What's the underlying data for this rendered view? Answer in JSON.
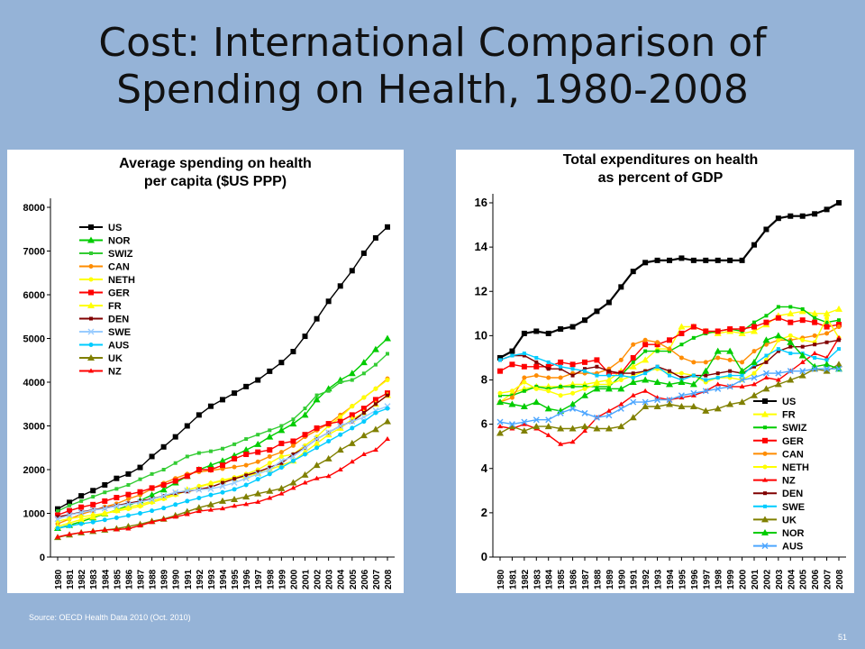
{
  "slide": {
    "title_line1": "Cost: International Comparison of",
    "title_line2": "Spending on Health, 1980-2008",
    "source": "Source: OECD Health Data 2010 (Oct. 2010)",
    "page_number": "51"
  },
  "chart_data": [
    {
      "type": "line",
      "title_line1": "Average spending on health",
      "title_line2": "per capita ($US PPP)",
      "xlabel": "",
      "ylabel": "",
      "ylim": [
        0,
        8000
      ],
      "yticks": [
        0,
        1000,
        2000,
        3000,
        4000,
        5000,
        6000,
        7000,
        8000
      ],
      "x": [
        "1980",
        "1981",
        "1982",
        "1983",
        "1984",
        "1985",
        "1986",
        "1987",
        "1988",
        "1989",
        "1990",
        "1991",
        "1992",
        "1993",
        "1994",
        "1995",
        "1996",
        "1997",
        "1998",
        "1999",
        "2000",
        "2001",
        "2002",
        "2003",
        "2004",
        "2005",
        "2006",
        "2007",
        "2008"
      ],
      "grid": false,
      "legend": "top-left",
      "series": [
        {
          "name": "US",
          "color": "#000000",
          "marker": "square",
          "values": [
            1100,
            1250,
            1400,
            1520,
            1650,
            1800,
            1900,
            2050,
            2300,
            2520,
            2750,
            3000,
            3250,
            3450,
            3600,
            3750,
            3900,
            4050,
            4250,
            4450,
            4700,
            5050,
            5450,
            5850,
            6200,
            6550,
            6950,
            7300,
            7550
          ]
        },
        {
          "name": "NOR",
          "color": "#00cc00",
          "marker": "triangle",
          "values": [
            660,
            730,
            810,
            900,
            990,
            1080,
            1180,
            1290,
            1420,
            1540,
            1700,
            1850,
            2000,
            2100,
            2200,
            2320,
            2450,
            2580,
            2750,
            2900,
            3050,
            3250,
            3600,
            3850,
            4050,
            4200,
            4450,
            4750,
            5000
          ]
        },
        {
          "name": "SWIZ",
          "color": "#33cc33",
          "marker": "square-sm",
          "values": [
            1050,
            1180,
            1280,
            1380,
            1480,
            1560,
            1650,
            1780,
            1900,
            2000,
            2150,
            2300,
            2380,
            2420,
            2480,
            2580,
            2700,
            2800,
            2900,
            3000,
            3150,
            3400,
            3700,
            3800,
            4000,
            4050,
            4200,
            4400,
            4650
          ]
        },
        {
          "name": "CAN",
          "color": "#ff8c00",
          "marker": "circle",
          "values": [
            760,
            870,
            980,
            1060,
            1150,
            1220,
            1330,
            1420,
            1560,
            1690,
            1800,
            1900,
            1950,
            1980,
            2020,
            2060,
            2100,
            2180,
            2300,
            2400,
            2550,
            2750,
            2900,
            3050,
            3250,
            3450,
            3650,
            3850,
            4080
          ]
        },
        {
          "name": "NETH",
          "color": "#ffff00",
          "marker": "circle",
          "values": [
            820,
            880,
            920,
            960,
            1000,
            1050,
            1100,
            1160,
            1250,
            1330,
            1420,
            1520,
            1620,
            1690,
            1760,
            1820,
            1900,
            2000,
            2150,
            2300,
            2350,
            2550,
            2750,
            3000,
            3200,
            3450,
            3650,
            3850,
            4050
          ]
        },
        {
          "name": "GER",
          "color": "#ff0000",
          "marker": "square",
          "values": [
            960,
            1060,
            1140,
            1200,
            1280,
            1360,
            1430,
            1490,
            1580,
            1650,
            1740,
            1850,
            2000,
            2000,
            2100,
            2250,
            2350,
            2400,
            2450,
            2600,
            2650,
            2800,
            2950,
            3050,
            3100,
            3250,
            3400,
            3600,
            3750
          ]
        },
        {
          "name": "FR",
          "color": "#ffff00",
          "marker": "triangle",
          "values": [
            700,
            780,
            860,
            920,
            1000,
            1070,
            1140,
            1200,
            1280,
            1360,
            1450,
            1540,
            1600,
            1680,
            1740,
            1800,
            1850,
            1920,
            2000,
            2100,
            2200,
            2400,
            2600,
            2800,
            2950,
            3150,
            3300,
            3500,
            3700
          ]
        },
        {
          "name": "DEN",
          "color": "#800000",
          "marker": "square-sm",
          "values": [
            920,
            970,
            1030,
            1080,
            1120,
            1180,
            1230,
            1280,
            1330,
            1400,
            1460,
            1500,
            1550,
            1600,
            1700,
            1790,
            1870,
            1950,
            2050,
            2150,
            2350,
            2500,
            2700,
            2850,
            3000,
            3100,
            3300,
            3500,
            3700
          ]
        },
        {
          "name": "SWE",
          "color": "#99ccff",
          "marker": "x",
          "values": [
            870,
            960,
            1020,
            1070,
            1110,
            1170,
            1210,
            1260,
            1320,
            1400,
            1480,
            1520,
            1540,
            1560,
            1620,
            1700,
            1800,
            1900,
            2000,
            2200,
            2300,
            2500,
            2700,
            2850,
            3000,
            3100,
            3200,
            3350,
            3450
          ]
        },
        {
          "name": "AUS",
          "color": "#00ccff",
          "marker": "circle",
          "values": [
            660,
            710,
            760,
            800,
            850,
            900,
            950,
            1000,
            1060,
            1120,
            1200,
            1280,
            1350,
            1420,
            1480,
            1550,
            1650,
            1780,
            1900,
            2050,
            2200,
            2350,
            2500,
            2650,
            2800,
            2950,
            3100,
            3300,
            3400
          ]
        },
        {
          "name": "UK",
          "color": "#808000",
          "marker": "triangle",
          "values": [
            450,
            510,
            560,
            590,
            620,
            650,
            700,
            750,
            820,
            870,
            950,
            1040,
            1130,
            1200,
            1280,
            1320,
            1380,
            1450,
            1510,
            1570,
            1700,
            1880,
            2100,
            2250,
            2450,
            2600,
            2780,
            2920,
            3100
          ]
        },
        {
          "name": "NZ",
          "color": "#ff0000",
          "marker": "triangle-sm",
          "values": [
            460,
            520,
            560,
            590,
            620,
            630,
            650,
            720,
            800,
            860,
            920,
            980,
            1050,
            1080,
            1110,
            1170,
            1210,
            1260,
            1350,
            1450,
            1580,
            1700,
            1800,
            1850,
            2000,
            2180,
            2350,
            2450,
            2700
          ]
        }
      ]
    },
    {
      "type": "line",
      "title_line1": "Total expenditures on health",
      "title_line2": "as percent of GDP",
      "xlabel": "",
      "ylabel": "",
      "ylim": [
        0,
        16
      ],
      "yticks": [
        0,
        2,
        4,
        6,
        8,
        10,
        12,
        14,
        16
      ],
      "x": [
        "1980",
        "1981",
        "1982",
        "1983",
        "1984",
        "1985",
        "1986",
        "1987",
        "1988",
        "1989",
        "1990",
        "1991",
        "1992",
        "1993",
        "1994",
        "1995",
        "1996",
        "1997",
        "1998",
        "1999",
        "2000",
        "2001",
        "2002",
        "2003",
        "2004",
        "2005",
        "2006",
        "2007",
        "2008"
      ],
      "grid": false,
      "legend": "bottom-right",
      "series": [
        {
          "name": "US",
          "color": "#000000",
          "marker": "square",
          "values": [
            9.0,
            9.3,
            10.1,
            10.2,
            10.1,
            10.3,
            10.4,
            10.7,
            11.1,
            11.5,
            12.2,
            12.9,
            13.3,
            13.4,
            13.4,
            13.5,
            13.4,
            13.4,
            13.4,
            13.4,
            13.4,
            14.1,
            14.8,
            15.3,
            15.4,
            15.4,
            15.5,
            15.7,
            16.0
          ]
        },
        {
          "name": "FR",
          "color": "#ffff00",
          "marker": "triangle",
          "values": [
            7.0,
            7.4,
            7.6,
            7.7,
            7.7,
            7.7,
            7.8,
            7.8,
            7.9,
            8.0,
            8.4,
            8.6,
            8.9,
            9.4,
            9.4,
            10.4,
            10.4,
            10.2,
            10.1,
            10.2,
            10.1,
            10.2,
            10.5,
            10.9,
            11.0,
            11.1,
            11.0,
            11.0,
            11.2
          ]
        },
        {
          "name": "SWIZ",
          "color": "#00cc00",
          "marker": "square-sm",
          "values": [
            7.3,
            7.3,
            7.5,
            7.7,
            7.6,
            7.7,
            7.7,
            7.7,
            7.7,
            7.7,
            8.2,
            8.8,
            9.3,
            9.3,
            9.3,
            9.6,
            9.9,
            10.1,
            10.2,
            10.3,
            10.2,
            10.6,
            10.9,
            11.3,
            11.3,
            11.2,
            10.8,
            10.6,
            10.7
          ]
        },
        {
          "name": "GER",
          "color": "#ff0000",
          "marker": "square",
          "values": [
            8.4,
            8.7,
            8.6,
            8.6,
            8.6,
            8.8,
            8.7,
            8.8,
            8.9,
            8.3,
            8.3,
            9.0,
            9.6,
            9.6,
            9.8,
            10.1,
            10.4,
            10.2,
            10.2,
            10.3,
            10.3,
            10.4,
            10.6,
            10.8,
            10.6,
            10.7,
            10.6,
            10.4,
            10.5
          ]
        },
        {
          "name": "CAN",
          "color": "#ff8c00",
          "marker": "circle",
          "values": [
            7.0,
            7.2,
            8.1,
            8.2,
            8.1,
            8.1,
            8.3,
            8.3,
            8.3,
            8.5,
            8.9,
            9.6,
            9.8,
            9.7,
            9.4,
            9.0,
            8.8,
            8.8,
            9.0,
            8.9,
            8.8,
            9.3,
            9.6,
            9.8,
            9.8,
            9.9,
            10.0,
            10.1,
            10.4
          ]
        },
        {
          "name": "NETH",
          "color": "#ffff00",
          "marker": "circle",
          "values": [
            7.4,
            7.5,
            7.9,
            7.6,
            7.5,
            7.3,
            7.4,
            7.6,
            7.8,
            7.8,
            8.0,
            8.2,
            8.4,
            8.5,
            8.3,
            8.3,
            8.2,
            7.9,
            8.1,
            8.1,
            8.0,
            8.3,
            8.9,
            9.8,
            10.0,
            9.8,
            9.7,
            10.8,
            9.9
          ]
        },
        {
          "name": "NZ",
          "color": "#ff0000",
          "marker": "triangle-sm",
          "values": [
            5.9,
            5.8,
            6.0,
            5.8,
            5.5,
            5.1,
            5.2,
            5.7,
            6.3,
            6.6,
            6.9,
            7.3,
            7.5,
            7.2,
            7.1,
            7.2,
            7.3,
            7.5,
            7.8,
            7.7,
            7.7,
            7.8,
            8.1,
            8.0,
            8.4,
            8.8,
            9.2,
            9.0,
            9.9
          ]
        },
        {
          "name": "DEN",
          "color": "#800000",
          "marker": "square-sm",
          "values": [
            8.9,
            9.1,
            9.1,
            8.8,
            8.5,
            8.5,
            8.2,
            8.5,
            8.6,
            8.4,
            8.3,
            8.3,
            8.4,
            8.6,
            8.4,
            8.1,
            8.2,
            8.2,
            8.3,
            8.4,
            8.3,
            8.6,
            8.8,
            9.3,
            9.5,
            9.5,
            9.6,
            9.7,
            9.8
          ]
        },
        {
          "name": "SWE",
          "color": "#00ccff",
          "marker": "square-sm",
          "values": [
            8.9,
            9.1,
            9.2,
            9.0,
            8.8,
            8.6,
            8.5,
            8.4,
            8.2,
            8.2,
            8.2,
            8.1,
            8.3,
            8.6,
            8.2,
            8.0,
            8.2,
            8.0,
            8.1,
            8.2,
            8.2,
            8.7,
            9.1,
            9.4,
            9.2,
            9.2,
            9.0,
            8.9,
            9.4
          ]
        },
        {
          "name": "UK",
          "color": "#808000",
          "marker": "triangle",
          "values": [
            5.6,
            5.9,
            5.7,
            5.9,
            5.9,
            5.8,
            5.8,
            5.9,
            5.8,
            5.8,
            5.9,
            6.3,
            6.8,
            6.8,
            6.9,
            6.8,
            6.8,
            6.6,
            6.7,
            6.9,
            7.0,
            7.3,
            7.6,
            7.8,
            8.0,
            8.2,
            8.5,
            8.4,
            8.7
          ]
        },
        {
          "name": "NOR",
          "color": "#00cc00",
          "marker": "triangle",
          "values": [
            7.0,
            6.9,
            6.8,
            7.0,
            6.7,
            6.6,
            6.9,
            7.3,
            7.6,
            7.6,
            7.6,
            7.9,
            8.0,
            7.9,
            7.8,
            7.9,
            7.8,
            8.4,
            9.3,
            9.3,
            8.4,
            8.8,
            9.8,
            10.0,
            9.7,
            9.1,
            8.6,
            8.7,
            8.5
          ]
        },
        {
          "name": "AUS",
          "color": "#4da6ff",
          "marker": "x",
          "values": [
            6.1,
            6.0,
            6.1,
            6.2,
            6.2,
            6.5,
            6.7,
            6.5,
            6.3,
            6.4,
            6.7,
            7.0,
            7.0,
            7.1,
            7.1,
            7.3,
            7.4,
            7.5,
            7.6,
            7.7,
            8.0,
            8.1,
            8.3,
            8.3,
            8.4,
            8.4,
            8.5,
            8.5,
            8.5
          ]
        }
      ]
    }
  ]
}
